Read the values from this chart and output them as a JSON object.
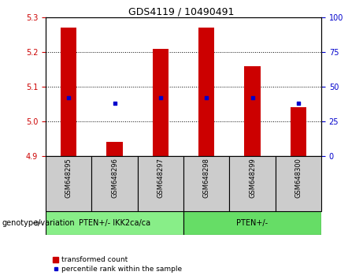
{
  "title": "GDS4119 / 10490491",
  "samples": [
    "GSM648295",
    "GSM648296",
    "GSM648297",
    "GSM648298",
    "GSM648299",
    "GSM648300"
  ],
  "bar_values": [
    5.27,
    4.94,
    5.21,
    5.27,
    5.16,
    5.04
  ],
  "percentile_values": [
    42,
    38,
    42,
    42,
    42,
    38
  ],
  "bar_bottom": 4.9,
  "ylim_left": [
    4.9,
    5.3
  ],
  "ylim_right": [
    0,
    100
  ],
  "left_ticks": [
    4.9,
    5.0,
    5.1,
    5.2,
    5.3
  ],
  "right_ticks": [
    0,
    25,
    50,
    75,
    100
  ],
  "bar_color": "#cc0000",
  "dot_color": "#0000cc",
  "groups": [
    {
      "label": "PTEN+/- IKK2ca/ca",
      "color": "#88ee88"
    },
    {
      "label": "PTEN+/-",
      "color": "#66dd66"
    }
  ],
  "group_label": "genotype/variation",
  "legend_bar_label": "transformed count",
  "legend_dot_label": "percentile rank within the sample",
  "sample_area_color": "#cccccc",
  "bar_width": 0.35,
  "grid_color": "#000000",
  "title_fontsize": 9,
  "tick_fontsize": 7,
  "sample_fontsize": 6,
  "group_fontsize": 7,
  "legend_fontsize": 6.5
}
